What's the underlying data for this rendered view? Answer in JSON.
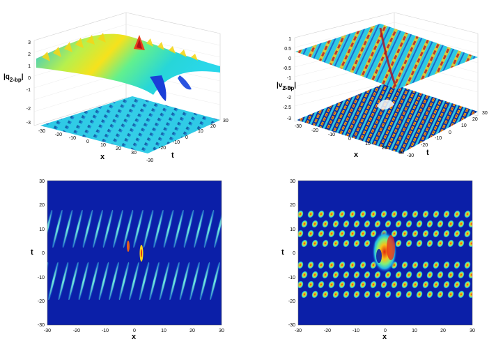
{
  "chart_data": [
    {
      "type": "surface3d",
      "panel": "top-left",
      "zlabel_main": "|q",
      "zlabel_sub": "2-bp",
      "zlabel_end": "|",
      "xlabel": "x",
      "ylabel": "t",
      "xlim": [
        -30,
        30
      ],
      "ylim": [
        -30,
        30
      ],
      "zlim": [
        -3,
        3
      ],
      "x_ticks": [
        "-30",
        "-20",
        "-10",
        "0",
        "10",
        "20",
        "30"
      ],
      "y_ticks": [
        "-30",
        "-20",
        "-10",
        "0",
        "10",
        "20",
        "30"
      ],
      "z_ticks": [
        "3",
        "2",
        "1",
        "0",
        "-1",
        "-2",
        "-3"
      ],
      "background_level": 1,
      "peak_max": 2.9,
      "projection_level": -3,
      "colormap": "jet"
    },
    {
      "type": "surface3d",
      "panel": "top-right",
      "zlabel_main": "|v",
      "zlabel_sub": "2-bp",
      "zlabel_end": "|",
      "xlabel": "x",
      "ylabel": "t",
      "xlim": [
        -30,
        30
      ],
      "ylim": [
        -30,
        30
      ],
      "zlim": [
        -3,
        1
      ],
      "x_ticks": [
        "-30",
        "-20",
        "-10",
        "0",
        "10",
        "20",
        "30"
      ],
      "y_ticks": [
        "-30",
        "-20",
        "-10",
        "0",
        "10",
        "20",
        "30"
      ],
      "z_ticks": [
        "1",
        "0.5",
        "0",
        "-0.5",
        "-1",
        "-1.5",
        "-2",
        "-2.5",
        "-3"
      ],
      "background_level": 0.2,
      "peak_max": 0.8,
      "projection_level": -3,
      "colormap": "jet"
    },
    {
      "type": "heatmap",
      "panel": "bottom-left",
      "xlabel": "x",
      "ylabel": "t",
      "xlim": [
        -30,
        30
      ],
      "ylim": [
        -30,
        30
      ],
      "x_ticks": [
        "-30",
        "-20",
        "-10",
        "0",
        "10",
        "20",
        "30"
      ],
      "y_ticks": [
        "30",
        "20",
        "10",
        "0",
        "-10",
        "-20",
        "-30"
      ],
      "colormap": "jet"
    },
    {
      "type": "heatmap",
      "panel": "bottom-right",
      "xlabel": "x",
      "ylabel": "t",
      "xlim": [
        -30,
        30
      ],
      "ylim": [
        -30,
        30
      ],
      "x_ticks": [
        "-30",
        "-20",
        "-10",
        "0",
        "10",
        "20",
        "30"
      ],
      "y_ticks": [
        "30",
        "20",
        "10",
        "0",
        "-10",
        "-20",
        "-30"
      ],
      "colormap": "jet"
    }
  ]
}
